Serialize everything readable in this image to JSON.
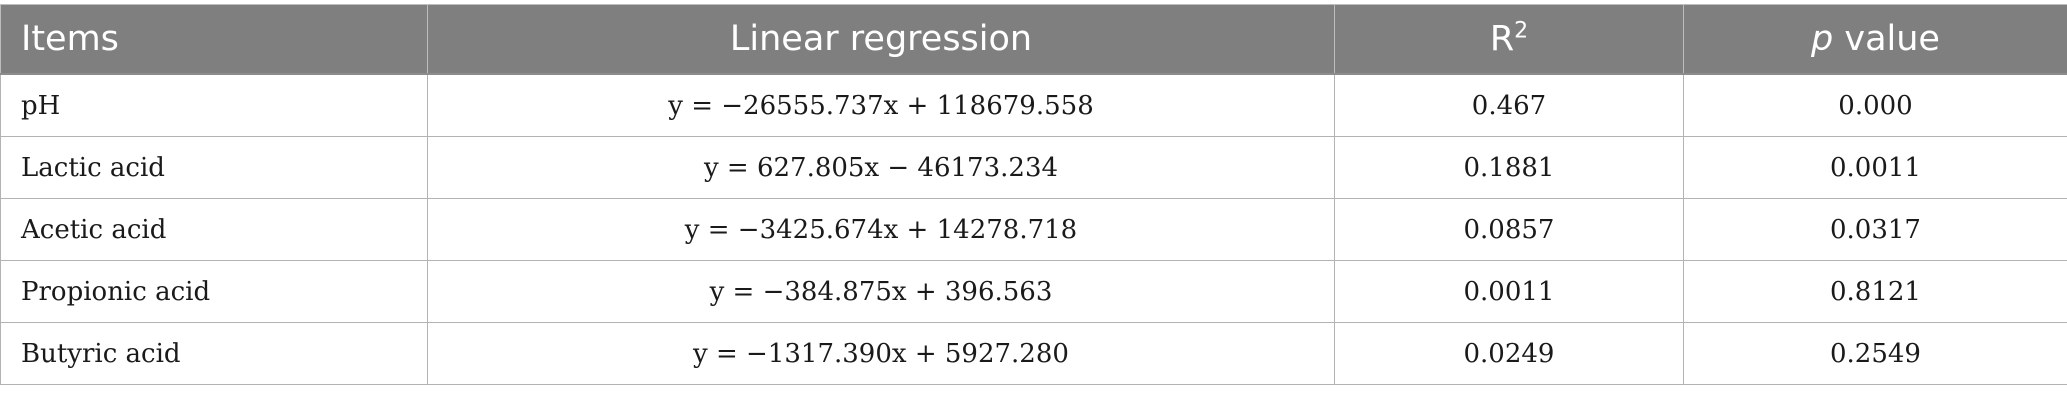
{
  "table": {
    "headers": {
      "items": "Items",
      "linear_regression": "Linear regression",
      "r_base": "R",
      "r_sup": "2",
      "p_italic": "p",
      "p_rest": " value"
    },
    "rows": [
      {
        "item": "pH",
        "regression": "y = −26555.737x + 118679.558",
        "r2": "0.467",
        "p": "0.000"
      },
      {
        "item": "Lactic acid",
        "regression": "y = 627.805x − 46173.234",
        "r2": "0.1881",
        "p": "0.0011"
      },
      {
        "item": "Acetic acid",
        "regression": "y = −3425.674x + 14278.718",
        "r2": "0.0857",
        "p": "0.0317"
      },
      {
        "item": "Propionic acid",
        "regression": "y = −384.875x + 396.563",
        "r2": "0.0011",
        "p": "0.8121"
      },
      {
        "item": "Butyric acid",
        "regression": "y = −1317.390x + 5927.280",
        "r2": "0.0249",
        "p": "0.2549"
      }
    ]
  },
  "colors": {
    "header_bg": "#7f7f7f",
    "header_text": "#ffffff",
    "grid": "#b3b3b3"
  }
}
